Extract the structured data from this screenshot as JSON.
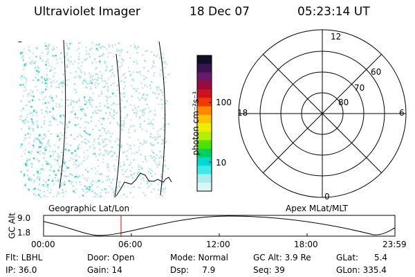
{
  "header": {
    "title": "Ultraviolet Imager",
    "date": "18 Dec 07",
    "time": "05:23:14 UT"
  },
  "colorbar": {
    "unit_label": "photon cm⁻²s⁻¹",
    "ticks": [
      "100",
      "10"
    ],
    "colors": [
      "#10102a",
      "#3a1450",
      "#6a1a6a",
      "#9a0a3a",
      "#d01020",
      "#ee3a00",
      "#ff8800",
      "#ffc000",
      "#f0ee00",
      "#b4ee00",
      "#50e000",
      "#00d060",
      "#00d8d0",
      "#40e8e8",
      "#a8ecec",
      "#dcf4f4"
    ]
  },
  "left_panel": {
    "caption": "Geographic Lat/Lon",
    "minus_mark": "–"
  },
  "polar_plot": {
    "caption": "Apex MLat/MLT",
    "mlt_labels": {
      "top": "12",
      "left": "18",
      "right": "6",
      "bottom": "0"
    },
    "lat_labels": [
      "60",
      "70",
      "80"
    ]
  },
  "timeline": {
    "ylabel": "GC Alt",
    "y_ticks": [
      "9.0",
      "1.8"
    ],
    "x_ticks": [
      "00:00",
      "06:00",
      "12:00",
      "18:00",
      "23:59"
    ],
    "marker_color": "#dd0000"
  },
  "info": {
    "flt": "Flt: LBHL",
    "ip": "IP: 36.0",
    "door": "Door: Open",
    "gain": "Gain: 14",
    "mode": "Mode: Normal",
    "dsp": "Dsp:     7.9",
    "gc_alt": "GC Alt: 3.9 Re",
    "seq": "Seq: 39",
    "glat": "GLat:      5.4",
    "glon": "GLon: 335.4"
  }
}
